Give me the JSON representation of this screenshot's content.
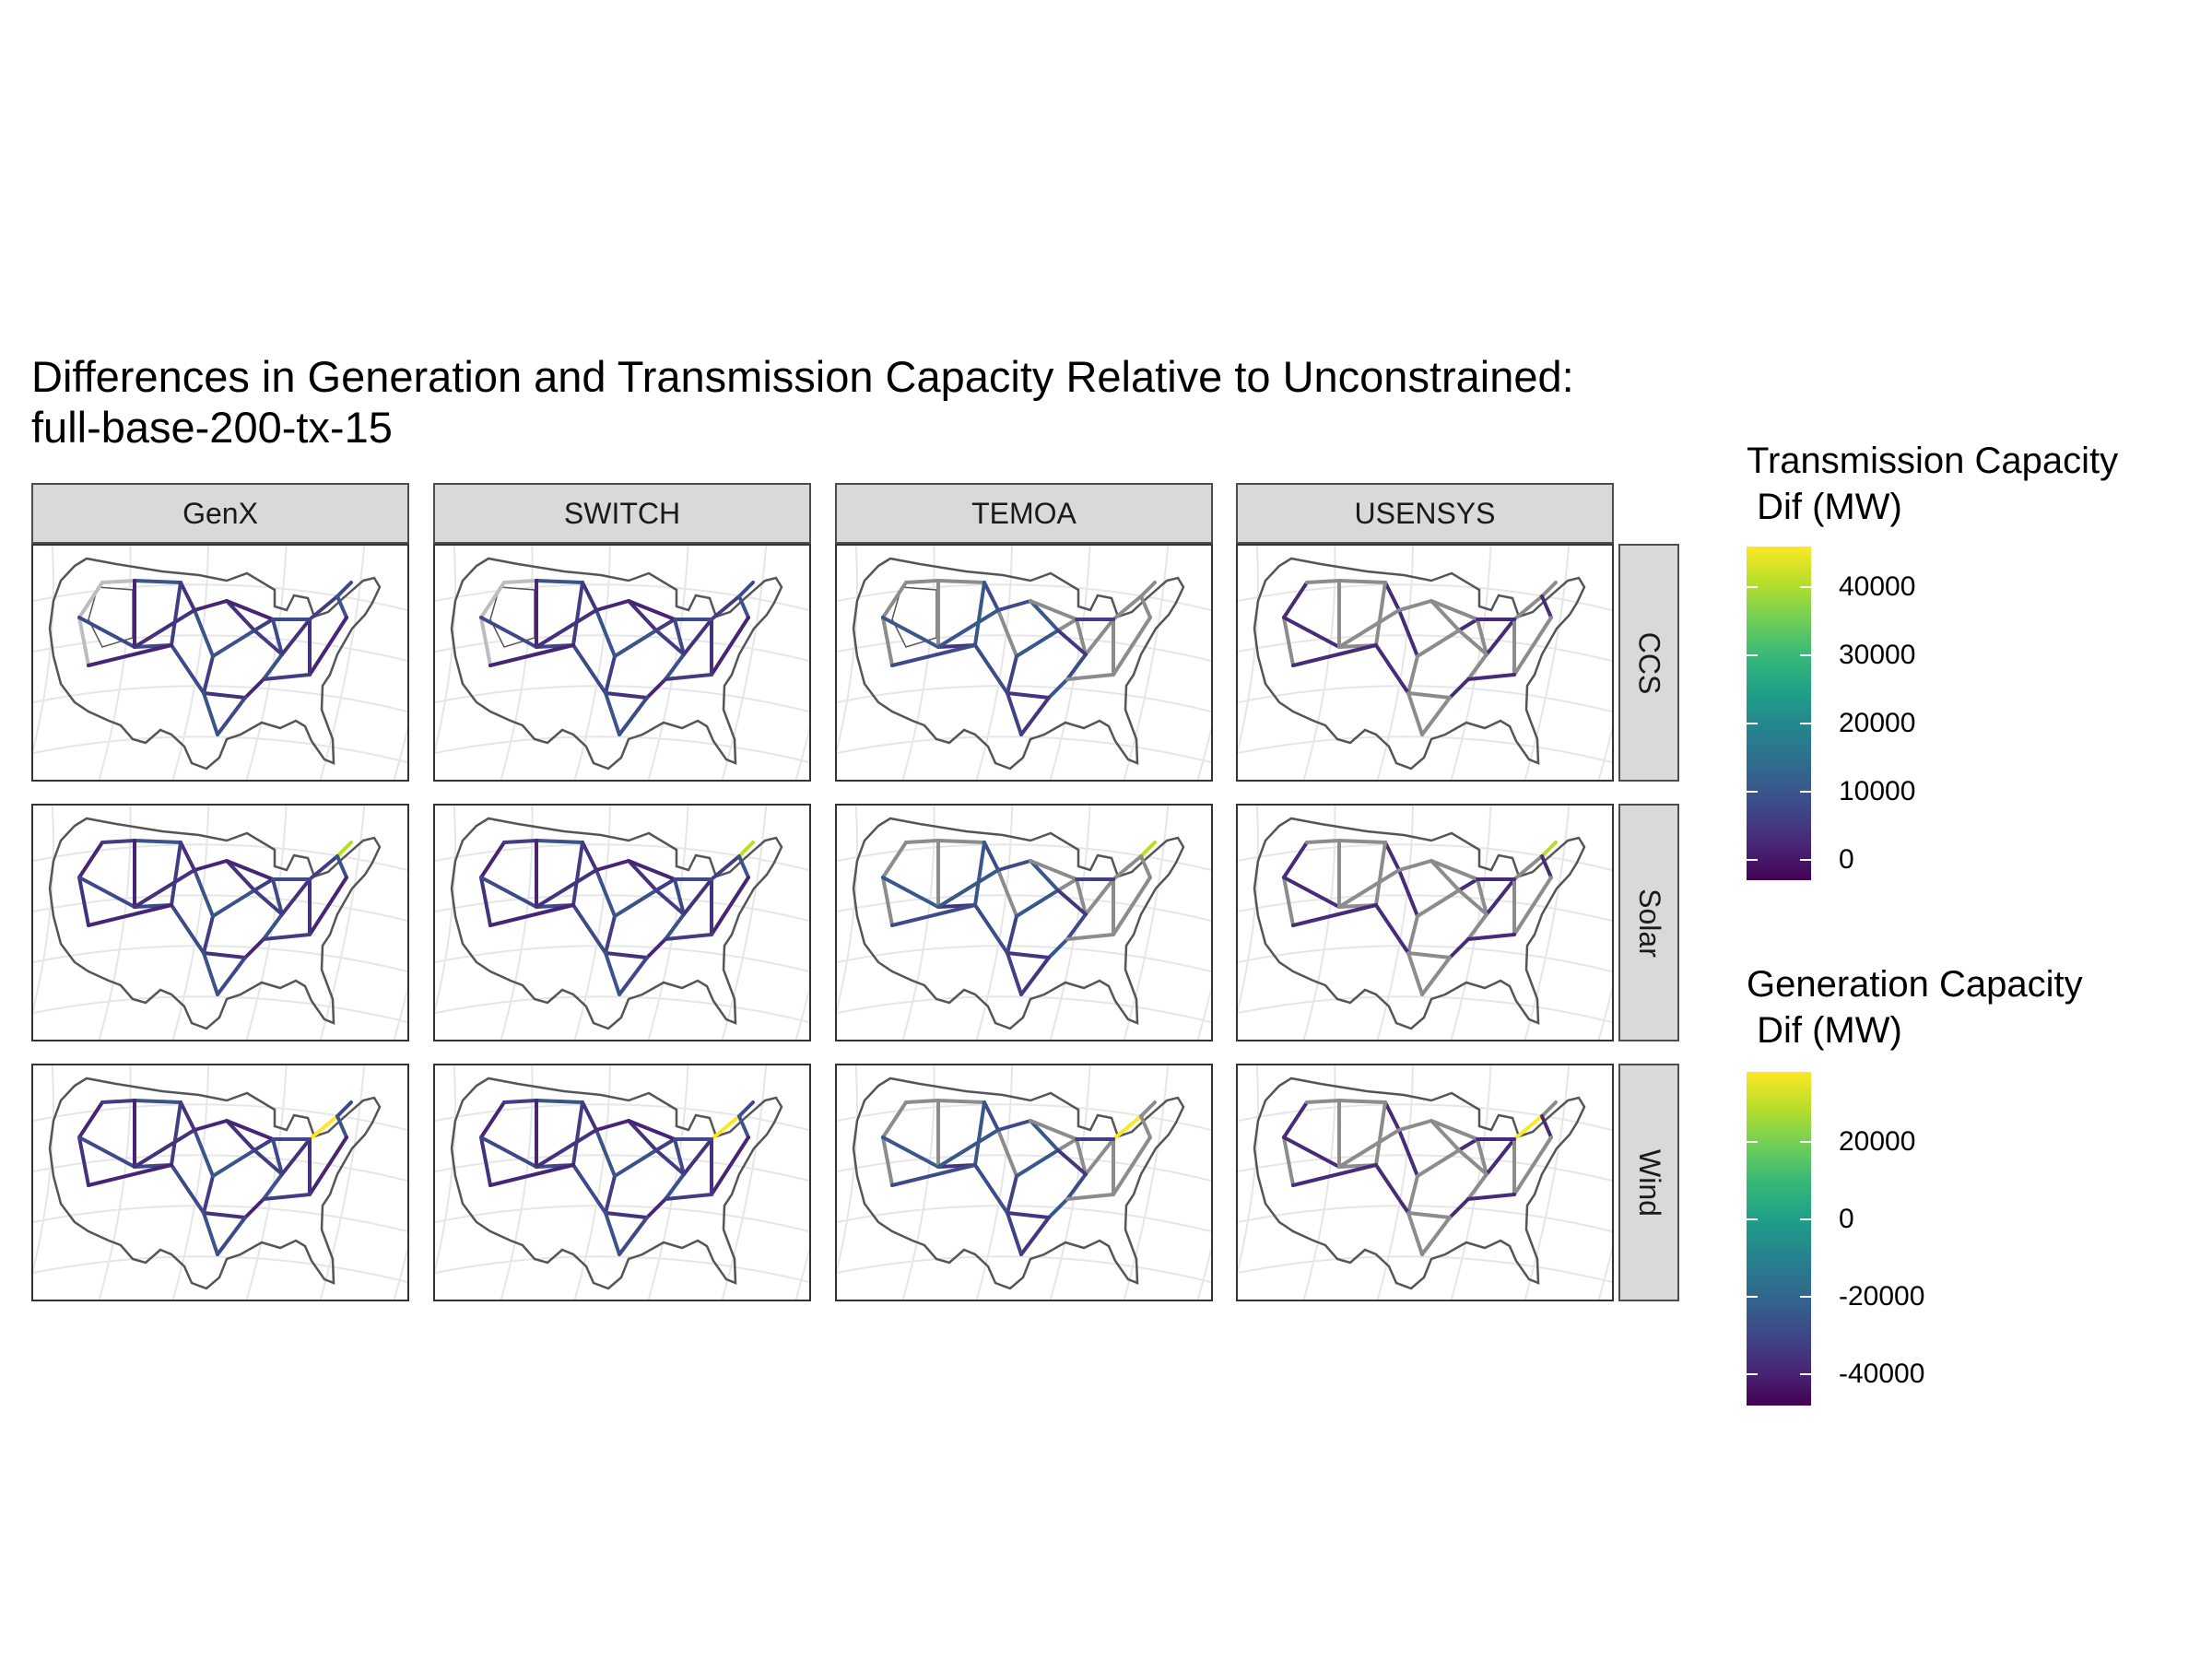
{
  "title": {
    "line1": "Differences in Generation and Transmission Capacity Relative to Unconstrained:",
    "line2": "full-base-200-tx-15"
  },
  "facets": {
    "columns": [
      "GenX",
      "SWITCH",
      "TEMOA",
      "USENSYS"
    ],
    "rows": [
      "CCS",
      "Solar",
      "Wind"
    ]
  },
  "legends": {
    "transmission": {
      "title": "Transmission Capacity\n Dif (MW)",
      "ticks": [
        "40000",
        "30000",
        "20000",
        "10000",
        "0"
      ],
      "tick_values": [
        40000,
        30000,
        20000,
        10000,
        0
      ],
      "range": [
        -3000,
        46000
      ]
    },
    "generation": {
      "title": "Generation Capacity\n Dif (MW)",
      "ticks": [
        "20000",
        "0",
        "-20000",
        "-40000"
      ],
      "tick_values": [
        20000,
        0,
        -20000,
        -40000
      ],
      "range": [
        -48000,
        38000
      ]
    }
  },
  "colors": {
    "viridis": [
      "#440154",
      "#482878",
      "#3e4a89",
      "#31688e",
      "#26828e",
      "#1f9e89",
      "#35b779",
      "#6ece58",
      "#b5de2b",
      "#fde725"
    ],
    "strip_bg": "#d9d9d9",
    "missing_line": "#7f7f7f",
    "white_region": "#ffffff"
  }
}
